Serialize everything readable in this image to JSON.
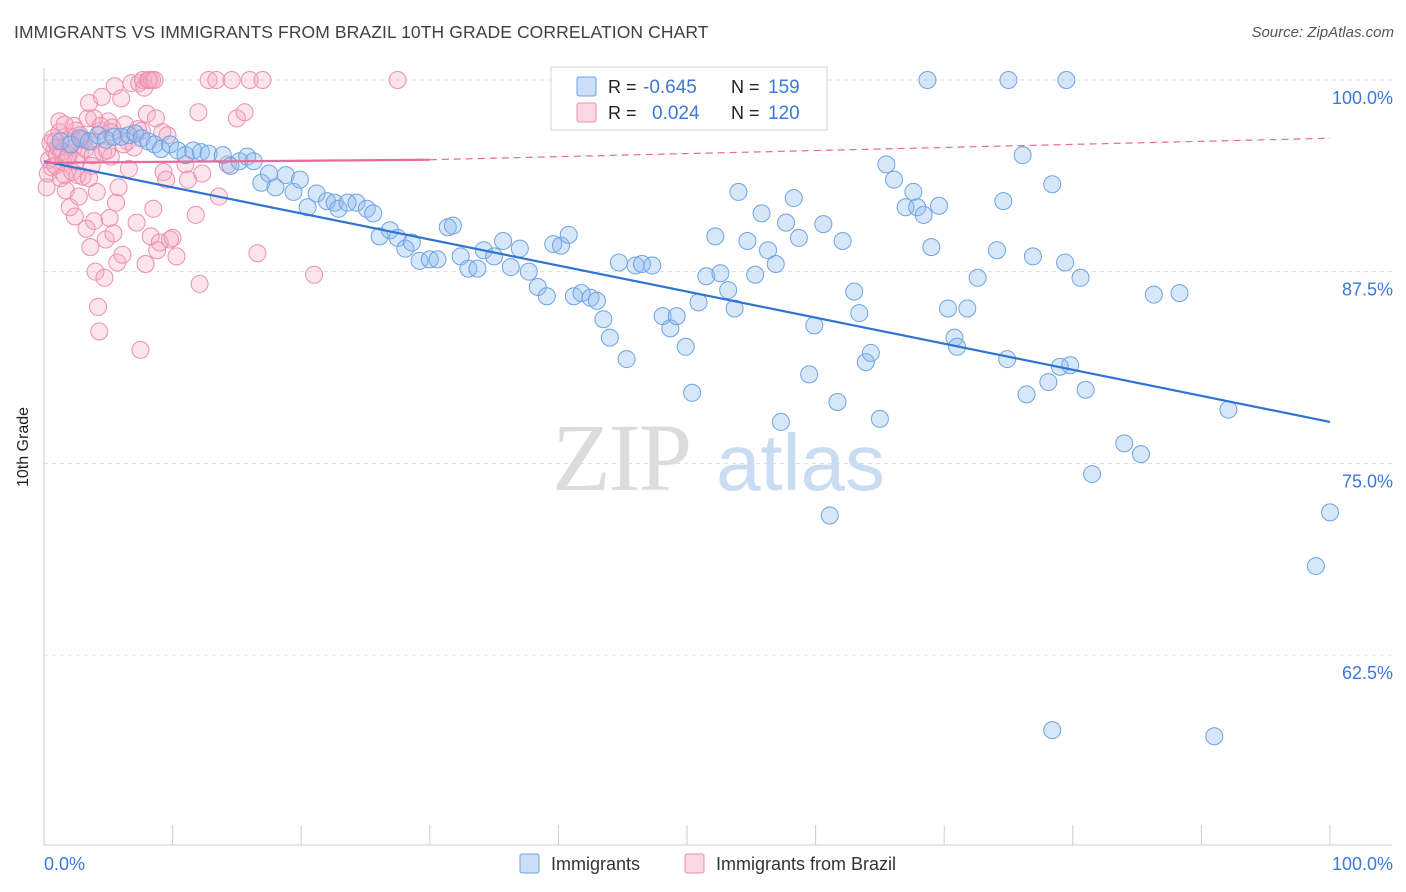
{
  "title": "IMMIGRANTS VS IMMIGRANTS FROM BRAZIL 10TH GRADE CORRELATION CHART",
  "source": "Source: ZipAtlas.com",
  "watermark": {
    "zip": "ZIP",
    "atlas": "atlas"
  },
  "colors": {
    "blue": "#6fa3e0",
    "blue_fill": "rgba(140,185,240,0.35)",
    "blue_line": "#2f74d0",
    "pink": "#ec8fb0",
    "pink_fill": "rgba(245,170,195,0.32)",
    "pink_line": "#e8699a",
    "axis_text": "#3c78d8",
    "grid": "#dddddd"
  },
  "legend_top": [
    {
      "r_label": "R =",
      "r_value": "-0.645",
      "n_label": "N =",
      "n_value": "159",
      "color": "blue"
    },
    {
      "r_label": "R =",
      "r_value": "0.024",
      "n_label": "N =",
      "n_value": "120",
      "color": "pink"
    }
  ],
  "chart_data": {
    "type": "scatter",
    "title": "IMMIGRANTS VS IMMIGRANTS FROM BRAZIL 10TH GRADE CORRELATION CHART",
    "xlabel": "",
    "ylabel": "10th Grade",
    "xlim": [
      0,
      100
    ],
    "ylim": [
      50,
      101.5
    ],
    "x_tick_labels": [
      "0.0%",
      "100.0%"
    ],
    "y_ticks": [
      62.5,
      75.0,
      87.5,
      100.0
    ],
    "y_tick_labels": [
      "62.5%",
      "75.0%",
      "87.5%",
      "100.0%"
    ],
    "grid": true,
    "legend_placement": "bottom-center",
    "series": [
      {
        "name": "Immigrants",
        "color": "blue",
        "trend": {
          "x": [
            0,
            100
          ],
          "y": [
            94.7,
            77.7
          ],
          "style": "solid"
        },
        "points": [
          [
            1.3,
            96.0
          ],
          [
            2.1,
            95.8
          ],
          [
            2.8,
            96.2
          ],
          [
            3.5,
            96.0
          ],
          [
            4.2,
            96.4
          ],
          [
            4.8,
            96.1
          ],
          [
            5.4,
            96.3
          ],
          [
            6.0,
            96.3
          ],
          [
            6.6,
            96.4
          ],
          [
            7.1,
            96.5
          ],
          [
            7.6,
            96.2
          ],
          [
            8.1,
            96.0
          ],
          [
            8.6,
            95.8
          ],
          [
            9.1,
            95.5
          ],
          [
            9.8,
            95.8
          ],
          [
            10.4,
            95.4
          ],
          [
            11.0,
            95.1
          ],
          [
            11.6,
            95.4
          ],
          [
            12.2,
            95.3
          ],
          [
            12.8,
            95.2
          ],
          [
            13.9,
            95.1
          ],
          [
            14.5,
            94.4
          ],
          [
            15.2,
            94.7
          ],
          [
            15.8,
            95.0
          ],
          [
            16.3,
            94.7
          ],
          [
            16.9,
            93.3
          ],
          [
            17.5,
            93.9
          ],
          [
            18.0,
            93.0
          ],
          [
            18.8,
            93.8
          ],
          [
            19.4,
            92.7
          ],
          [
            19.9,
            93.5
          ],
          [
            20.5,
            91.7
          ],
          [
            21.2,
            92.6
          ],
          [
            22.0,
            92.1
          ],
          [
            22.6,
            92.0
          ],
          [
            22.9,
            91.6
          ],
          [
            23.6,
            92.0
          ],
          [
            24.3,
            92.0
          ],
          [
            25.1,
            91.6
          ],
          [
            25.6,
            91.3
          ],
          [
            26.1,
            89.8
          ],
          [
            26.9,
            90.2
          ],
          [
            27.5,
            89.7
          ],
          [
            28.1,
            89.0
          ],
          [
            28.6,
            89.4
          ],
          [
            29.2,
            88.2
          ],
          [
            30.0,
            88.3
          ],
          [
            30.6,
            88.3
          ],
          [
            31.4,
            90.4
          ],
          [
            31.8,
            90.5
          ],
          [
            32.4,
            88.5
          ],
          [
            33.0,
            87.7
          ],
          [
            33.7,
            87.7
          ],
          [
            34.2,
            88.9
          ],
          [
            35.0,
            88.5
          ],
          [
            35.7,
            89.5
          ],
          [
            36.3,
            87.8
          ],
          [
            37.0,
            89.0
          ],
          [
            37.7,
            87.5
          ],
          [
            38.4,
            86.5
          ],
          [
            39.1,
            85.9
          ],
          [
            39.6,
            89.3
          ],
          [
            40.2,
            89.2
          ],
          [
            40.8,
            89.9
          ],
          [
            41.2,
            85.9
          ],
          [
            41.8,
            86.1
          ],
          [
            42.5,
            85.8
          ],
          [
            43.0,
            85.6
          ],
          [
            43.5,
            84.4
          ],
          [
            44.0,
            83.2
          ],
          [
            44.7,
            88.1
          ],
          [
            45.3,
            81.8
          ],
          [
            46.0,
            87.9
          ],
          [
            46.5,
            88.0
          ],
          [
            47.3,
            87.9
          ],
          [
            48.1,
            84.6
          ],
          [
            48.7,
            83.8
          ],
          [
            49.2,
            84.6
          ],
          [
            49.9,
            82.6
          ],
          [
            50.4,
            79.6
          ],
          [
            50.9,
            85.5
          ],
          [
            51.5,
            87.2
          ],
          [
            52.2,
            89.8
          ],
          [
            52.6,
            87.4
          ],
          [
            53.2,
            86.3
          ],
          [
            53.7,
            85.1
          ],
          [
            54.0,
            92.7
          ],
          [
            54.7,
            89.5
          ],
          [
            55.3,
            87.3
          ],
          [
            55.8,
            91.3
          ],
          [
            56.3,
            88.9
          ],
          [
            56.9,
            88.0
          ],
          [
            57.3,
            77.7
          ],
          [
            57.7,
            90.7
          ],
          [
            58.3,
            92.3
          ],
          [
            58.7,
            89.7
          ],
          [
            59.5,
            80.8
          ],
          [
            59.9,
            84.0
          ],
          [
            60.6,
            90.6
          ],
          [
            61.1,
            71.6
          ],
          [
            61.7,
            79.0
          ],
          [
            62.1,
            89.5
          ],
          [
            63.0,
            86.2
          ],
          [
            63.4,
            84.8
          ],
          [
            63.9,
            81.6
          ],
          [
            64.3,
            82.2
          ],
          [
            65.0,
            77.9
          ],
          [
            65.5,
            94.5
          ],
          [
            66.1,
            93.5
          ],
          [
            67.0,
            91.7
          ],
          [
            67.6,
            92.7
          ],
          [
            67.9,
            91.7
          ],
          [
            68.4,
            91.2
          ],
          [
            69.0,
            89.1
          ],
          [
            69.6,
            91.8
          ],
          [
            70.3,
            85.1
          ],
          [
            70.8,
            83.2
          ],
          [
            71.0,
            82.6
          ],
          [
            71.8,
            85.1
          ],
          [
            72.6,
            87.1
          ],
          [
            74.1,
            88.9
          ],
          [
            74.6,
            92.1
          ],
          [
            74.9,
            81.8
          ],
          [
            76.1,
            95.1
          ],
          [
            76.4,
            79.5
          ],
          [
            76.9,
            88.5
          ],
          [
            78.1,
            80.3
          ],
          [
            78.4,
            93.2
          ],
          [
            79.0,
            81.3
          ],
          [
            79.4,
            88.1
          ],
          [
            79.8,
            81.4
          ],
          [
            80.6,
            87.1
          ],
          [
            81.0,
            79.8
          ],
          [
            81.5,
            74.3
          ],
          [
            84.0,
            76.3
          ],
          [
            85.3,
            75.6
          ],
          [
            86.3,
            86.0
          ],
          [
            88.3,
            86.1
          ],
          [
            92.1,
            78.5
          ],
          [
            98.9,
            68.3
          ],
          [
            100,
            71.8
          ],
          [
            79.5,
            100
          ],
          [
            75.0,
            100
          ],
          [
            68.7,
            100
          ],
          [
            91.0,
            57.2
          ],
          [
            78.4,
            57.6
          ]
        ]
      },
      {
        "name": "Immigrants from Brazil",
        "color": "pink",
        "trend": {
          "x": [
            0,
            30,
            100
          ],
          "y": [
            94.6,
            94.8,
            96.2
          ],
          "style": "solid-then-dashed"
        },
        "points": [
          [
            0.2,
            93.0
          ],
          [
            0.3,
            93.9
          ],
          [
            0.4,
            94.8
          ],
          [
            0.5,
            95.9
          ],
          [
            0.6,
            94.3
          ],
          [
            0.7,
            96.2
          ],
          [
            0.8,
            95.4
          ],
          [
            0.9,
            94.4
          ],
          [
            1.0,
            95.1
          ],
          [
            1.1,
            95.6
          ],
          [
            1.2,
            96.6
          ],
          [
            1.3,
            93.6
          ],
          [
            1.4,
            95.3
          ],
          [
            1.5,
            94.6
          ],
          [
            1.6,
            93.8
          ],
          [
            1.7,
            92.8
          ],
          [
            1.8,
            94.9
          ],
          [
            1.9,
            95.8
          ],
          [
            2.0,
            91.7
          ],
          [
            2.1,
            96.3
          ],
          [
            2.2,
            94.0
          ],
          [
            2.3,
            95.6
          ],
          [
            2.4,
            91.1
          ],
          [
            2.5,
            96.7
          ],
          [
            2.6,
            93.8
          ],
          [
            2.7,
            92.4
          ],
          [
            2.8,
            95.2
          ],
          [
            2.9,
            96.1
          ],
          [
            3.0,
            93.7
          ],
          [
            3.2,
            95.5
          ],
          [
            3.3,
            90.3
          ],
          [
            3.4,
            97.5
          ],
          [
            3.5,
            98.5
          ],
          [
            3.6,
            89.1
          ],
          [
            3.7,
            94.4
          ],
          [
            3.8,
            95.1
          ],
          [
            3.9,
            90.8
          ],
          [
            4.0,
            87.5
          ],
          [
            4.1,
            92.7
          ],
          [
            4.2,
            85.2
          ],
          [
            4.3,
            83.6
          ],
          [
            4.4,
            96.7
          ],
          [
            4.5,
            98.9
          ],
          [
            4.6,
            95.3
          ],
          [
            4.7,
            87.1
          ],
          [
            4.8,
            89.6
          ],
          [
            5.0,
            97.3
          ],
          [
            5.1,
            91.0
          ],
          [
            5.2,
            95.0
          ],
          [
            5.3,
            96.9
          ],
          [
            5.4,
            90.0
          ],
          [
            5.5,
            99.6
          ],
          [
            5.6,
            92.0
          ],
          [
            5.7,
            88.1
          ],
          [
            5.8,
            93.0
          ],
          [
            6.0,
            98.8
          ],
          [
            6.1,
            88.6
          ],
          [
            6.3,
            97.1
          ],
          [
            6.5,
            96.0
          ],
          [
            6.6,
            94.2
          ],
          [
            6.8,
            99.8
          ],
          [
            7.0,
            95.6
          ],
          [
            7.2,
            90.7
          ],
          [
            7.4,
            99.8
          ],
          [
            7.5,
            82.4
          ],
          [
            7.6,
            96.7
          ],
          [
            7.7,
            100
          ],
          [
            7.8,
            99.5
          ],
          [
            7.9,
            88.0
          ],
          [
            8.0,
            97.8
          ],
          [
            8.1,
            100
          ],
          [
            8.2,
            100
          ],
          [
            8.3,
            89.8
          ],
          [
            8.4,
            100
          ],
          [
            8.5,
            91.6
          ],
          [
            8.6,
            100
          ],
          [
            8.7,
            97.5
          ],
          [
            8.8,
            88.9
          ],
          [
            9.0,
            89.4
          ],
          [
            9.2,
            96.6
          ],
          [
            9.3,
            94.0
          ],
          [
            9.5,
            93.5
          ],
          [
            9.6,
            96.4
          ],
          [
            9.8,
            89.6
          ],
          [
            10.0,
            89.7
          ],
          [
            10.3,
            88.5
          ],
          [
            11.0,
            94.5
          ],
          [
            11.2,
            93.5
          ],
          [
            11.8,
            91.2
          ],
          [
            12.0,
            97.9
          ],
          [
            12.1,
            86.7
          ],
          [
            12.3,
            93.9
          ],
          [
            12.8,
            100
          ],
          [
            13.4,
            100
          ],
          [
            13.6,
            92.4
          ],
          [
            14.3,
            94.5
          ],
          [
            14.6,
            100
          ],
          [
            15.0,
            97.5
          ],
          [
            15.6,
            97.9
          ],
          [
            16.0,
            100
          ],
          [
            16.6,
            88.7
          ],
          [
            17.0,
            100
          ],
          [
            21.0,
            87.3
          ],
          [
            27.5,
            100
          ],
          [
            1.2,
            97.3
          ],
          [
            2.3,
            97.0
          ],
          [
            3.1,
            96.1
          ],
          [
            3.9,
            97.5
          ],
          [
            4.4,
            97.0
          ],
          [
            5.2,
            96.6
          ],
          [
            6.2,
            95.8
          ],
          [
            7.3,
            96.8
          ],
          [
            2.5,
            94.7
          ],
          [
            3.5,
            93.6
          ],
          [
            1.9,
            95.1
          ],
          [
            0.9,
            96.0
          ],
          [
            1.6,
            97.1
          ],
          [
            2.8,
            96.4
          ],
          [
            3.7,
            96.0
          ],
          [
            4.9,
            95.4
          ]
        ]
      }
    ]
  },
  "legend_bottom": [
    {
      "label": "Immigrants",
      "color": "blue"
    },
    {
      "label": "Immigrants from Brazil",
      "color": "pink"
    }
  ]
}
